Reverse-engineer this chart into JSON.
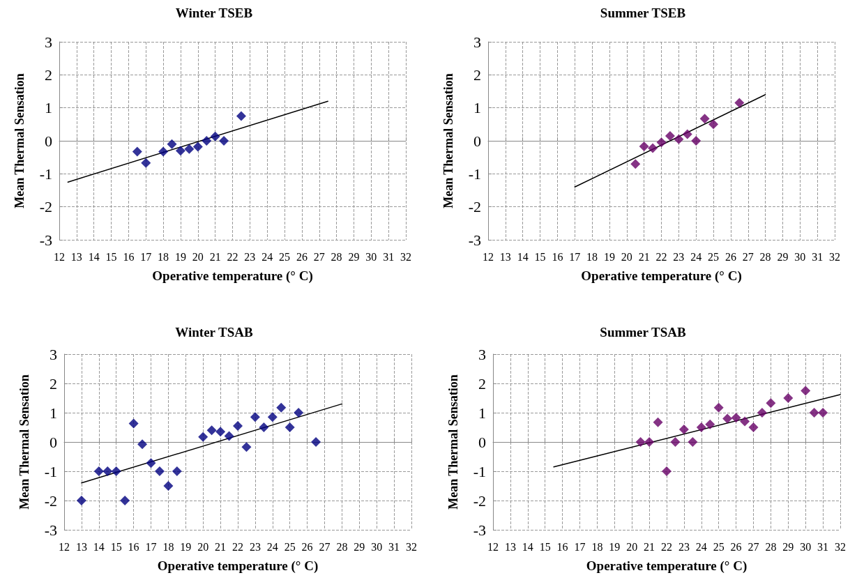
{
  "chart_data": [
    {
      "type": "scatter",
      "title": "Winter TSEB",
      "xlabel": "Operative temperature (° C)",
      "ylabel": "Mean Thermal Sensation",
      "xlim": [
        12,
        32
      ],
      "xticks": [
        12,
        13,
        14,
        15,
        16,
        17,
        18,
        19,
        20,
        21,
        22,
        23,
        24,
        25,
        26,
        27,
        28,
        29,
        30,
        31,
        32
      ],
      "ylim": [
        -3,
        3
      ],
      "yticks": [
        -3,
        -2,
        -1,
        0,
        1,
        2,
        3
      ],
      "grid": true,
      "marker": "diamond",
      "series": [
        {
          "type": "scatter",
          "color": "#000080",
          "x": [
            16.5,
            17,
            18,
            18.5,
            19,
            19.5,
            20,
            20.5,
            21,
            21.5,
            22.5
          ],
          "values": [
            -0.33,
            -0.67,
            -0.33,
            -0.1,
            -0.3,
            -0.25,
            -0.18,
            0,
            0.13,
            0,
            0.75
          ]
        },
        {
          "type": "line",
          "marker": "none",
          "color": "#000000",
          "x": [
            12.5,
            27.5
          ],
          "values": [
            -1.25,
            1.2
          ]
        }
      ]
    },
    {
      "type": "scatter",
      "title": "Summer TSEB",
      "xlabel": "Operative temperature (° C)",
      "ylabel": "Mean Thermal Sensation",
      "xlim": [
        12,
        32
      ],
      "xticks": [
        12,
        13,
        14,
        15,
        16,
        17,
        18,
        19,
        20,
        21,
        22,
        23,
        24,
        25,
        26,
        27,
        28,
        29,
        30,
        31,
        32
      ],
      "ylim": [
        -3,
        3
      ],
      "yticks": [
        -3,
        -2,
        -1,
        0,
        1,
        2,
        3
      ],
      "grid": true,
      "marker": "diamond",
      "series": [
        {
          "type": "scatter",
          "color": "#660066",
          "x": [
            20.5,
            21,
            21.5,
            22,
            22.5,
            23,
            23.5,
            24,
            24.5,
            25,
            26.5
          ],
          "values": [
            -0.7,
            -0.17,
            -0.22,
            -0.05,
            0.15,
            0.05,
            0.2,
            0,
            0.67,
            0.5,
            1.15
          ]
        },
        {
          "type": "line",
          "marker": "none",
          "color": "#000000",
          "x": [
            17,
            28
          ],
          "values": [
            -1.4,
            1.4
          ]
        }
      ]
    },
    {
      "type": "scatter",
      "title": "Winter TSAB",
      "xlabel": "Operative temperature (° C)",
      "ylabel": "Mean Thermal Sensation",
      "xlim": [
        12,
        32
      ],
      "xticks": [
        12,
        13,
        14,
        15,
        16,
        17,
        18,
        19,
        20,
        21,
        22,
        23,
        24,
        25,
        26,
        27,
        28,
        29,
        30,
        31,
        32
      ],
      "ylim": [
        -3,
        3
      ],
      "yticks": [
        -3,
        -2,
        -1,
        0,
        1,
        2,
        3
      ],
      "grid": true,
      "marker": "diamond",
      "series": [
        {
          "type": "scatter",
          "color": "#000080",
          "x": [
            13,
            14,
            14.5,
            15,
            15.5,
            16,
            16.5,
            17,
            17.5,
            18,
            18.5,
            20,
            20.5,
            21,
            21.5,
            22,
            22.5,
            23,
            23.5,
            24,
            24.5,
            25,
            25.5,
            26.5
          ],
          "values": [
            -2,
            -1,
            -1,
            -1,
            -2,
            0.63,
            -0.08,
            -0.72,
            -1,
            -1.5,
            -1,
            0.17,
            0.4,
            0.35,
            0.2,
            0.55,
            -0.17,
            0.85,
            0.5,
            0.85,
            1.17,
            0.5,
            1,
            0
          ]
        },
        {
          "type": "line",
          "marker": "none",
          "color": "#000000",
          "x": [
            13,
            28
          ],
          "values": [
            -1.4,
            1.3
          ]
        }
      ]
    },
    {
      "type": "scatter",
      "title": "Summer TSAB",
      "xlabel": "Operative temperature (° C)",
      "ylabel": "Mean Thermal Sensation",
      "xlim": [
        12,
        32
      ],
      "xticks": [
        12,
        13,
        14,
        15,
        16,
        17,
        18,
        19,
        20,
        21,
        22,
        23,
        24,
        25,
        26,
        27,
        28,
        29,
        30,
        31,
        32
      ],
      "ylim": [
        -3,
        3
      ],
      "yticks": [
        -3,
        -2,
        -1,
        0,
        1,
        2,
        3
      ],
      "grid": true,
      "marker": "diamond",
      "series": [
        {
          "type": "scatter",
          "color": "#660066",
          "x": [
            20.5,
            21,
            21.5,
            22,
            22.5,
            23,
            23.5,
            24,
            24.5,
            25,
            25.5,
            26,
            26.5,
            27,
            27.5,
            28,
            29,
            30,
            30.5,
            31
          ],
          "values": [
            0,
            0,
            0.67,
            -1,
            0,
            0.43,
            0,
            0.5,
            0.6,
            1.17,
            0.8,
            0.83,
            0.7,
            0.5,
            1,
            1.33,
            1.5,
            1.75,
            1,
            1
          ]
        },
        {
          "type": "line",
          "marker": "none",
          "color": "#000000",
          "x": [
            15.5,
            32
          ],
          "values": [
            -0.85,
            1.62
          ]
        }
      ]
    }
  ]
}
